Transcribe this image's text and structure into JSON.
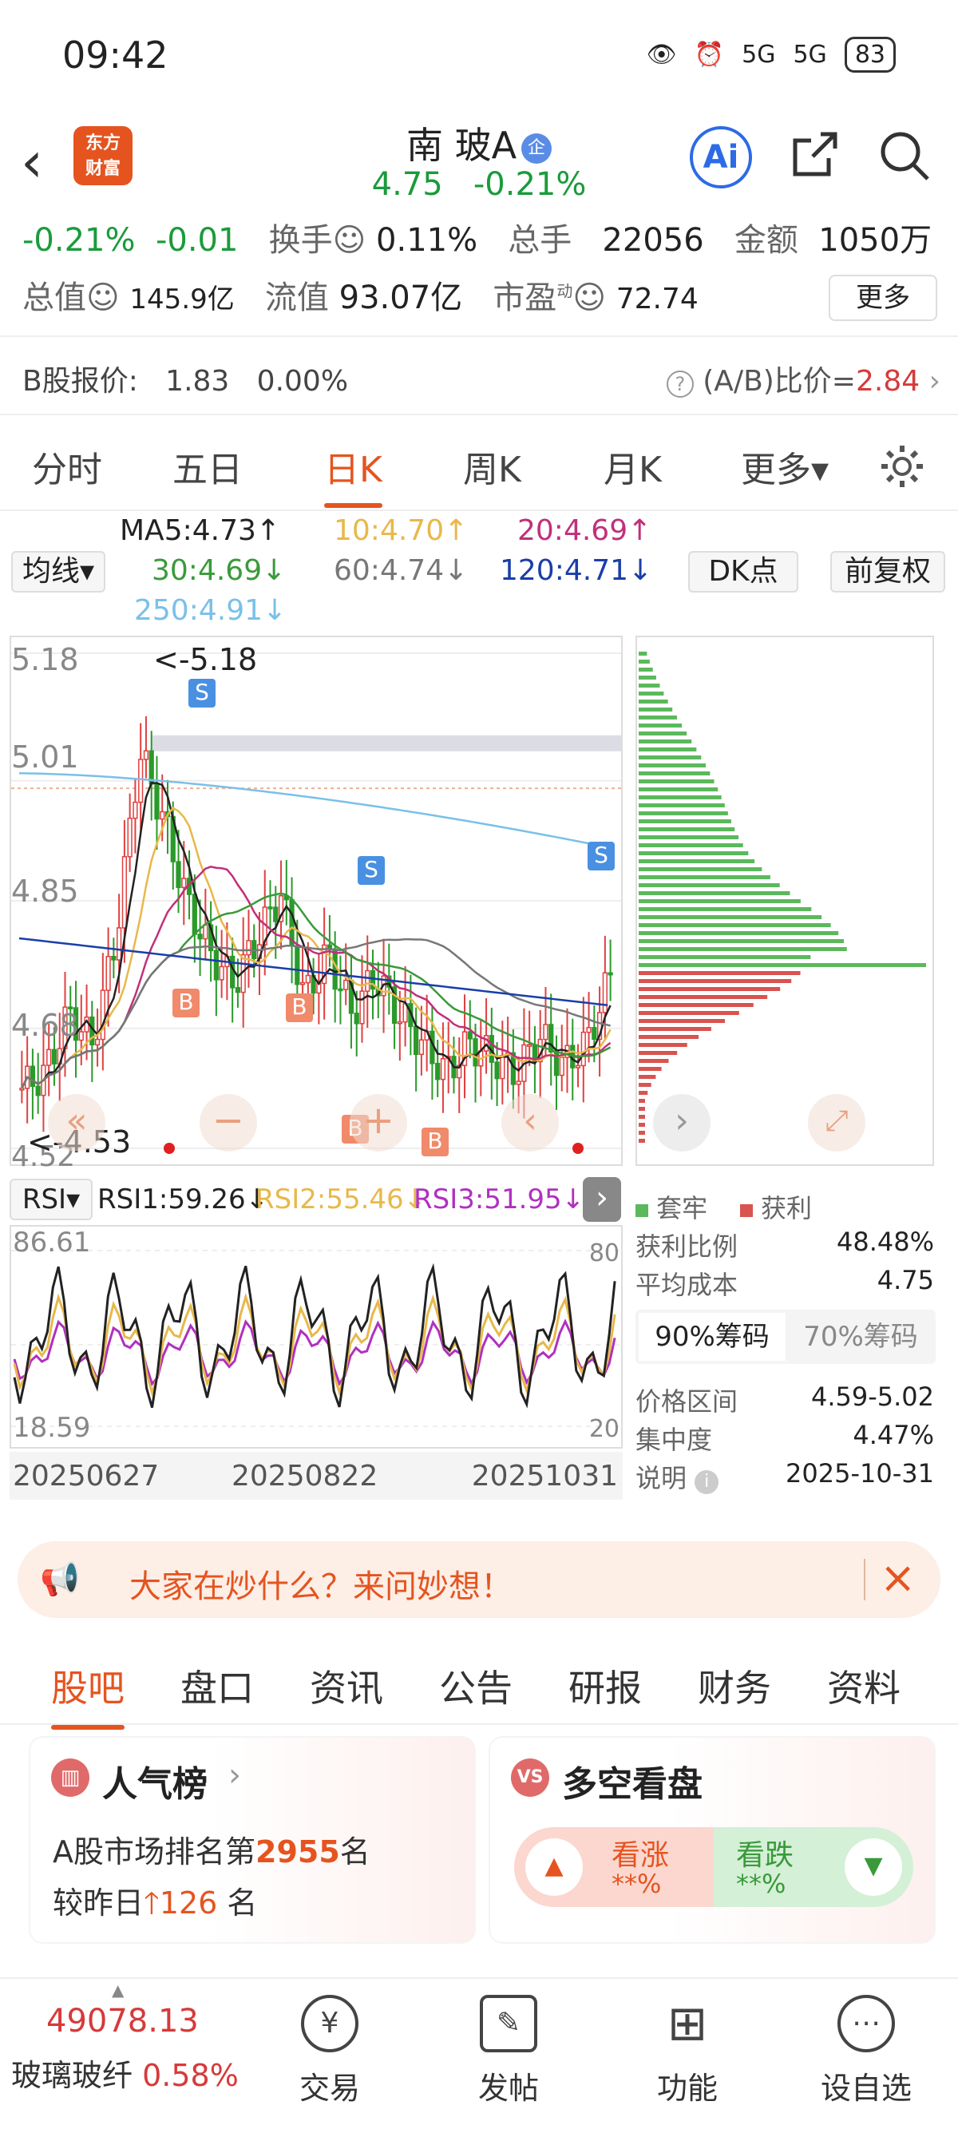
{
  "status": {
    "time": "09:42",
    "signal1": "5G",
    "signal2": "5G",
    "battery": "83"
  },
  "nav": {
    "logo_line1": "东方",
    "logo_line2": "财富",
    "stock_name": "南 玻A",
    "badge": "企",
    "price": "4.75",
    "change_pct": "-0.21%",
    "ai": "Ai"
  },
  "quote": {
    "chg_pct": "-0.21%",
    "chg": "-0.01",
    "turnover_label": "换手",
    "turnover": "0.11%",
    "volume_label": "总手",
    "volume": "22056",
    "amount_label": "金额",
    "amount": "1050万",
    "mktcap_label": "总值",
    "mktcap": "145.9亿",
    "float_label": "流值",
    "float": "93.07亿",
    "pe_label": "市盈",
    "pe_sup": "动",
    "pe": "72.74",
    "more": "更多"
  },
  "bquote": {
    "label": "B股报价:",
    "price": "1.83",
    "pct": "0.00%",
    "ratio_label": "(A/B)比价=",
    "ratio": "2.84"
  },
  "tabs": [
    "分时",
    "五日",
    "日K",
    "周K",
    "月K",
    "更多▾"
  ],
  "ma": {
    "selector": "均线▾",
    "ma5": "MA5:4.73↑",
    "ma10": "10:4.70↑",
    "ma20": "20:4.69↑",
    "ma30": "30:4.69↓",
    "ma60": "60:4.74↓",
    "ma120": "120:4.71↓",
    "ma250": "250:4.91↓",
    "dk": "DK点",
    "adj": "前复权",
    "colors": {
      "ma5": "#222222",
      "ma10": "#e8b84a",
      "ma20": "#c0307a",
      "ma30": "#3a9a3a",
      "ma60": "#777777",
      "ma120": "#1a3ea8",
      "ma250": "#7ac0e8"
    }
  },
  "kchart": {
    "y_top": "5.18",
    "y_2": "5.01",
    "y_3": "4.85",
    "y_4": "4.68",
    "y_bottom": "4.52",
    "high_label": "<-5.18",
    "low_label": "<-4.53",
    "b_marks": [
      "B",
      "B",
      "B",
      "B"
    ],
    "s_marks": [
      "S",
      "S",
      "S"
    ]
  },
  "chart_data": {
    "type": "candlestick",
    "ylim": [
      4.52,
      5.18
    ],
    "high": 5.18,
    "low": 4.53,
    "moving_averages": {
      "MA5": 4.73,
      "MA10": 4.7,
      "MA20": 4.69,
      "MA30": 4.69,
      "MA60": 4.74,
      "MA120": 4.71,
      "MA250": 4.91
    },
    "x_ticks": [
      "20250627",
      "20250822",
      "20251031"
    ],
    "rsi": {
      "RSI1": 59.26,
      "RSI2": 55.46,
      "RSI3": 51.95,
      "ylim": [
        18.59,
        86.61
      ]
    }
  },
  "rsi": {
    "selector": "RSI▾",
    "rsi1": "RSI1:59.26↓",
    "rsi2": "RSI2:55.46↓",
    "rsi3": "RSI3:51.95↓",
    "y_top": "86.61",
    "y_bottom": "18.59",
    "r_top": "80",
    "r_bottom": "20"
  },
  "dates": [
    "20250627",
    "20250822",
    "20251031"
  ],
  "chips": {
    "legend_trapped": "套牢",
    "legend_profit": "获利",
    "profit_ratio_label": "获利比例",
    "profit_ratio": "48.48%",
    "avg_cost_label": "平均成本",
    "avg_cost": "4.75",
    "tab90": "90%筹码",
    "tab70": "70%筹码",
    "range_label": "价格区间",
    "range": "4.59-5.02",
    "concentration_label": "集中度",
    "concentration": "4.47%",
    "note_label": "说明",
    "note_date": "2025-10-31"
  },
  "promo": {
    "text": "大家在炒什么？来问妙想！"
  },
  "tabs2": [
    "股吧",
    "盘口",
    "资讯",
    "公告",
    "研报",
    "财务",
    "资料"
  ],
  "cards": {
    "popularity_title": "人气榜",
    "rank_prefix": "A股市场排名第",
    "rank": "2955",
    "rank_suffix": "名",
    "change_prefix": "较昨日",
    "change": "126",
    "change_suffix": "名",
    "bullbear_title": "多空看盘",
    "bull_label": "看涨",
    "bull_value": "**%",
    "bear_label": "看跌",
    "bear_value": "**%"
  },
  "bottom": {
    "index_value": "49078.13",
    "index_name": "玻璃玻纤",
    "index_pct": "0.58%",
    "trade": "交易",
    "post": "发帖",
    "func": "功能",
    "watch": "设自选"
  }
}
